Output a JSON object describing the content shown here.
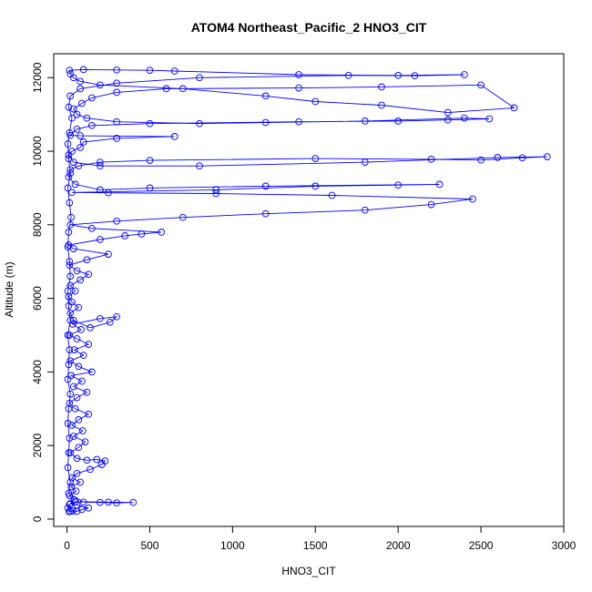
{
  "chart_data": {
    "type": "scatter",
    "title": "ATOM4 Northeast_Pacific_2 HNO3_CIT",
    "xlabel": "HNO3_CIT",
    "ylabel": "Altitude (m)",
    "xlim": [
      -80,
      3000
    ],
    "ylim": [
      -200,
      12650
    ],
    "xticks": [
      0,
      500,
      1000,
      1500,
      2000,
      2500,
      3000
    ],
    "yticks": [
      0,
      2000,
      4000,
      6000,
      8000,
      10000,
      12000
    ],
    "marker": "open-circle",
    "connected": true,
    "grid": false,
    "legend": "none",
    "color": "#0000ff",
    "series": [
      {
        "points": [
          [
            12,
            200
          ],
          [
            35,
            220
          ],
          [
            60,
            210
          ],
          [
            90,
            260
          ],
          [
            130,
            300
          ],
          [
            60,
            380
          ],
          [
            20,
            420
          ],
          [
            45,
            520
          ],
          [
            15,
            640
          ],
          [
            55,
            760
          ],
          [
            25,
            880
          ],
          [
            80,
            1000
          ],
          [
            30,
            1120
          ],
          [
            60,
            1240
          ],
          [
            140,
            1350
          ],
          [
            210,
            1480
          ],
          [
            230,
            1580
          ],
          [
            180,
            1620
          ],
          [
            120,
            1600
          ],
          [
            60,
            1650
          ],
          [
            20,
            1800
          ],
          [
            70,
            1950
          ],
          [
            110,
            2100
          ],
          [
            40,
            2250
          ],
          [
            95,
            2400
          ],
          [
            30,
            2550
          ],
          [
            70,
            2700
          ],
          [
            130,
            2850
          ],
          [
            50,
            3000
          ],
          [
            15,
            3150
          ],
          [
            60,
            3300
          ],
          [
            120,
            3450
          ],
          [
            40,
            3600
          ],
          [
            90,
            3750
          ],
          [
            25,
            3900
          ],
          [
            150,
            4000
          ],
          [
            70,
            4150
          ],
          [
            20,
            4300
          ],
          [
            100,
            4450
          ],
          [
            45,
            4600
          ],
          [
            130,
            4750
          ],
          [
            60,
            4900
          ],
          [
            15,
            5000
          ],
          [
            85,
            5150
          ],
          [
            35,
            5300
          ],
          [
            200,
            5450
          ],
          [
            300,
            5500
          ],
          [
            260,
            5350
          ],
          [
            140,
            5200
          ],
          [
            40,
            5400
          ],
          [
            20,
            5600
          ],
          [
            70,
            5750
          ],
          [
            30,
            5900
          ],
          [
            10,
            6050
          ],
          [
            50,
            6200
          ],
          [
            20,
            6350
          ],
          [
            80,
            6500
          ],
          [
            130,
            6650
          ],
          [
            60,
            6750
          ],
          [
            15,
            6900
          ],
          [
            120,
            7050
          ],
          [
            250,
            7200
          ],
          [
            40,
            7350
          ],
          [
            10,
            7450
          ],
          [
            200,
            7600
          ],
          [
            350,
            7700
          ],
          [
            450,
            7750
          ],
          [
            570,
            7800
          ],
          [
            150,
            7900
          ],
          [
            20,
            8000
          ],
          [
            300,
            8100
          ],
          [
            700,
            8200
          ],
          [
            1200,
            8300
          ],
          [
            1800,
            8400
          ],
          [
            2200,
            8550
          ],
          [
            2450,
            8700
          ],
          [
            1600,
            8800
          ],
          [
            900,
            8850
          ],
          [
            250,
            8870
          ],
          [
            30,
            8880
          ],
          [
            900,
            8950
          ],
          [
            1500,
            9050
          ],
          [
            2000,
            9080
          ],
          [
            2250,
            9100
          ],
          [
            1200,
            9050
          ],
          [
            500,
            9000
          ],
          [
            200,
            8950
          ],
          [
            50,
            9100
          ],
          [
            10,
            9300
          ],
          [
            20,
            9500
          ],
          [
            70,
            9600
          ],
          [
            200,
            9700
          ],
          [
            500,
            9750
          ],
          [
            1500,
            9800
          ],
          [
            2200,
            9780
          ],
          [
            2500,
            9760
          ],
          [
            2750,
            9820
          ],
          [
            2900,
            9850
          ],
          [
            2600,
            9830
          ],
          [
            1800,
            9700
          ],
          [
            800,
            9600
          ],
          [
            200,
            9600
          ],
          [
            40,
            9700
          ],
          [
            10,
            9900
          ],
          [
            30,
            10000
          ],
          [
            80,
            10100
          ],
          [
            100,
            10250
          ],
          [
            300,
            10350
          ],
          [
            650,
            10400
          ],
          [
            80,
            10420
          ],
          [
            20,
            10430
          ],
          [
            60,
            10600
          ],
          [
            150,
            10700
          ],
          [
            500,
            10750
          ],
          [
            1400,
            10800
          ],
          [
            2000,
            10820
          ],
          [
            2300,
            10850
          ],
          [
            2550,
            10880
          ],
          [
            2400,
            10900
          ],
          [
            1800,
            10820
          ],
          [
            1200,
            10780
          ],
          [
            800,
            10750
          ],
          [
            300,
            10800
          ],
          [
            120,
            10900
          ],
          [
            60,
            11000
          ],
          [
            40,
            11150
          ],
          [
            90,
            11300
          ],
          [
            150,
            11450
          ],
          [
            300,
            11600
          ],
          [
            600,
            11700
          ],
          [
            1400,
            11720
          ],
          [
            1900,
            11750
          ],
          [
            2500,
            11800
          ],
          [
            2700,
            11180
          ],
          [
            2300,
            11050
          ],
          [
            1900,
            11250
          ],
          [
            1500,
            11350
          ],
          [
            1200,
            11500
          ],
          [
            700,
            11700
          ],
          [
            200,
            11800
          ],
          [
            80,
            11900
          ],
          [
            40,
            12000
          ],
          [
            20,
            12100
          ],
          [
            15,
            12200
          ],
          [
            100,
            12220
          ],
          [
            300,
            12210
          ],
          [
            500,
            12200
          ],
          [
            650,
            12180
          ],
          [
            1400,
            12080
          ],
          [
            2000,
            12060
          ],
          [
            2400,
            12080
          ],
          [
            2100,
            12050
          ],
          [
            1700,
            12060
          ],
          [
            800,
            12000
          ],
          [
            300,
            11850
          ],
          [
            80,
            11700
          ],
          [
            20,
            11500
          ],
          [
            10,
            11200
          ],
          [
            30,
            10900
          ],
          [
            15,
            10500
          ],
          [
            5,
            10200
          ],
          [
            10,
            9800
          ],
          [
            20,
            9400
          ],
          [
            5,
            9000
          ],
          [
            15,
            8600
          ],
          [
            25,
            8200
          ],
          [
            10,
            7800
          ],
          [
            5,
            7400
          ],
          [
            15,
            7000
          ],
          [
            20,
            6600
          ],
          [
            5,
            6200
          ],
          [
            10,
            5800
          ],
          [
            20,
            5400
          ],
          [
            5,
            5000
          ],
          [
            15,
            4600
          ],
          [
            10,
            4200
          ],
          [
            5,
            3800
          ],
          [
            20,
            3400
          ],
          [
            10,
            3000
          ],
          [
            5,
            2600
          ],
          [
            15,
            2200
          ],
          [
            10,
            1800
          ],
          [
            5,
            1400
          ],
          [
            20,
            1000
          ],
          [
            10,
            700
          ],
          [
            100,
            460
          ],
          [
            200,
            450
          ],
          [
            300,
            440
          ],
          [
            400,
            450
          ],
          [
            250,
            460
          ],
          [
            50,
            470
          ],
          [
            15,
            400
          ],
          [
            5,
            300
          ],
          [
            20,
            210
          ]
        ]
      }
    ]
  }
}
